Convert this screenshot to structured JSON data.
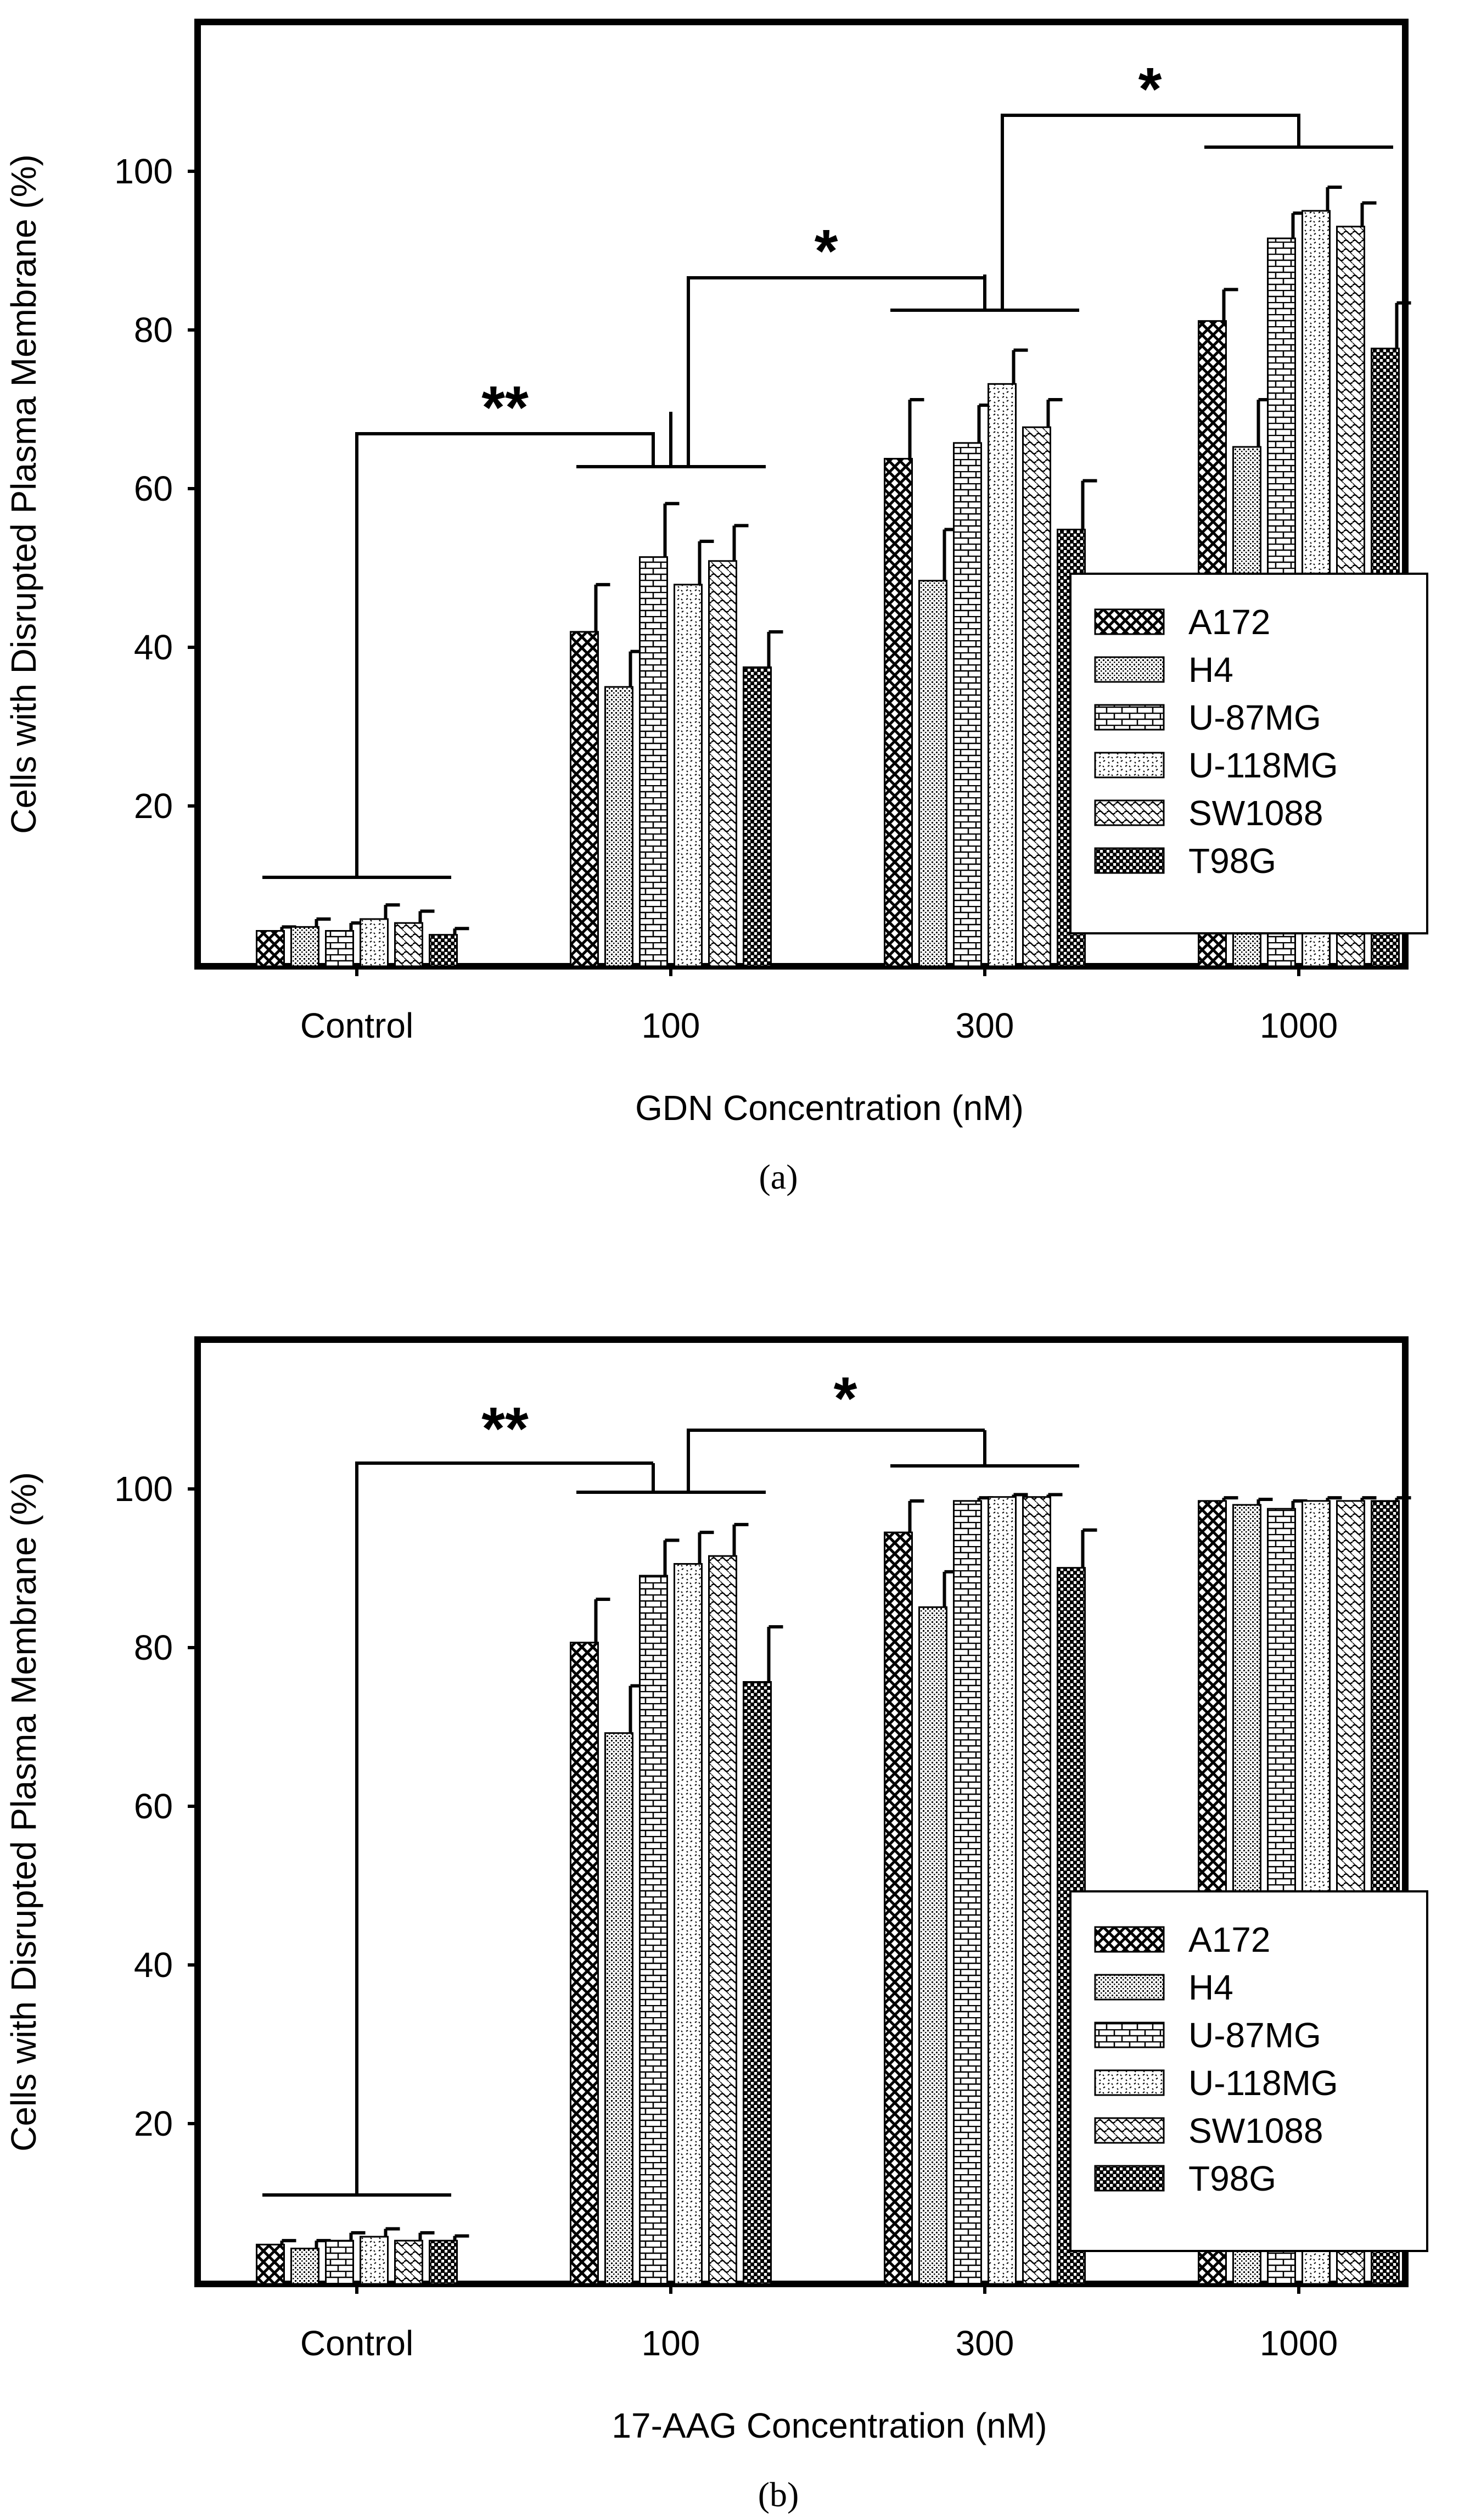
{
  "chart_data": [
    {
      "type": "bar",
      "panel_label": "(a)",
      "xlabel": "GDN Concentration (nM)",
      "ylabel": "Cells with Disrupted Plasma Membrane (%)",
      "ylim": [
        0,
        120
      ],
      "yticks": [
        20,
        40,
        60,
        80,
        100
      ],
      "categories": [
        "Control",
        "100",
        "300",
        "1000"
      ],
      "legend_position": "right",
      "series": [
        {
          "name": "A172",
          "pattern": "crosshatch",
          "values": [
            4.5,
            42.5,
            64.5,
            82.0
          ],
          "errors": [
            0.5,
            6.0,
            7.5,
            4.0
          ]
        },
        {
          "name": "H4",
          "pattern": "dots",
          "values": [
            5.0,
            35.5,
            49.0,
            66.0
          ],
          "errors": [
            1.0,
            4.5,
            6.5,
            6.0
          ]
        },
        {
          "name": "U-87MG",
          "pattern": "brick",
          "values": [
            4.5,
            52.0,
            66.5,
            92.5
          ],
          "errors": [
            1.0,
            6.8,
            4.8,
            3.2
          ]
        },
        {
          "name": "U-118MG",
          "pattern": "sparse-dots",
          "values": [
            6.0,
            48.5,
            74.0,
            96.0
          ],
          "errors": [
            1.8,
            5.5,
            4.3,
            3.0
          ]
        },
        {
          "name": "SW1088",
          "pattern": "diagonal",
          "values": [
            5.5,
            51.5,
            68.5,
            94.0
          ],
          "errors": [
            1.5,
            4.5,
            3.5,
            3.0
          ]
        },
        {
          "name": "T98G",
          "pattern": "checker",
          "values": [
            4.0,
            38.0,
            55.5,
            78.5
          ],
          "errors": [
            0.8,
            4.5,
            6.2,
            5.8
          ]
        }
      ],
      "significance": [
        {
          "label": "**",
          "from": "Control",
          "to": "100"
        },
        {
          "label": "*",
          "from": "100",
          "to": "300"
        },
        {
          "label": "*",
          "from": "300",
          "to": "1000"
        }
      ]
    },
    {
      "type": "bar",
      "panel_label": "(b)",
      "xlabel": "17-AAG Concentration (nM)",
      "ylabel": "Cells with Disrupted Plasma Membrane (%)",
      "ylim": [
        0,
        120
      ],
      "yticks": [
        20,
        40,
        60,
        80,
        100
      ],
      "categories": [
        "Control",
        "100",
        "300",
        "1000"
      ],
      "legend_position": "right",
      "series": [
        {
          "name": "A172",
          "pattern": "crosshatch",
          "values": [
            5.0,
            81.5,
            95.5,
            99.5
          ],
          "errors": [
            0.5,
            5.5,
            4.0,
            0.4
          ]
        },
        {
          "name": "H4",
          "pattern": "dots",
          "values": [
            4.5,
            70.0,
            86.0,
            99.0
          ],
          "errors": [
            1.0,
            6.0,
            4.5,
            0.7
          ]
        },
        {
          "name": "U-87MG",
          "pattern": "brick",
          "values": [
            5.5,
            90.0,
            99.5,
            98.5
          ],
          "errors": [
            1.0,
            4.5,
            0.4,
            1.0
          ]
        },
        {
          "name": "U-118MG",
          "pattern": "sparse-dots",
          "values": [
            6.0,
            91.5,
            100.0,
            99.5
          ],
          "errors": [
            1.0,
            4.0,
            0.3,
            0.4
          ]
        },
        {
          "name": "SW1088",
          "pattern": "diagonal",
          "values": [
            5.5,
            92.5,
            100.0,
            99.5
          ],
          "errors": [
            1.0,
            4.0,
            0.3,
            0.4
          ]
        },
        {
          "name": "T98G",
          "pattern": "checker",
          "values": [
            5.5,
            76.5,
            91.0,
            99.5
          ],
          "errors": [
            0.6,
            7.0,
            4.8,
            0.4
          ]
        }
      ],
      "significance": [
        {
          "label": "**",
          "from": "Control",
          "to": "100"
        },
        {
          "label": "*",
          "from": "100",
          "to": "300"
        }
      ]
    }
  ]
}
